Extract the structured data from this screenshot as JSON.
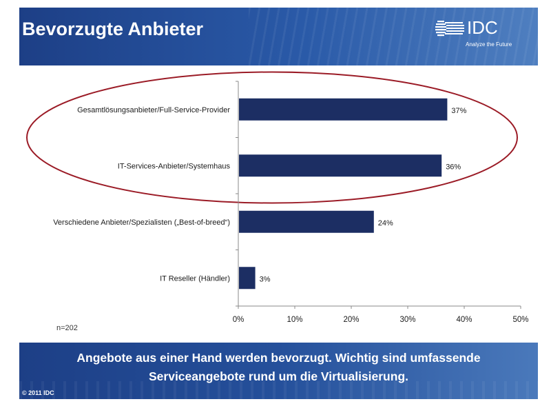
{
  "header": {
    "title": "Bevorzugte Anbieter",
    "logo_text": "IDC",
    "logo_tagline": "Analyze the Future"
  },
  "chart_data": {
    "type": "bar",
    "orientation": "horizontal",
    "categories": [
      "Gesamtlösungsanbieter/Full-Service-Provider",
      "IT-Services-Anbieter/Systemhaus",
      "Verschiedene Anbieter/Spezialisten („Best-of-breed“)",
      "IT Reseller (Händler)"
    ],
    "values": [
      37,
      36,
      24,
      3
    ],
    "value_labels": [
      "37%",
      "36%",
      "24%",
      "3%"
    ],
    "xlim": [
      0,
      50
    ],
    "x_ticks": [
      0,
      10,
      20,
      30,
      40,
      50
    ],
    "x_tick_labels": [
      "0%",
      "10%",
      "20%",
      "30%",
      "40%",
      "50%"
    ],
    "title": "",
    "xlabel": "",
    "ylabel": "",
    "grid": false,
    "highlight": "top two categories circled",
    "bar_color": "#1c2e63",
    "highlight_color": "#9b1b26"
  },
  "sample_note": "n=202",
  "footer": {
    "conclusion_line1": "Angebote aus einer Hand werden bevorzugt. Wichtig sind umfassende",
    "conclusion_line2": "Serviceangebote rund um die Virtualisierung.",
    "copyright": "© 2011 IDC"
  }
}
